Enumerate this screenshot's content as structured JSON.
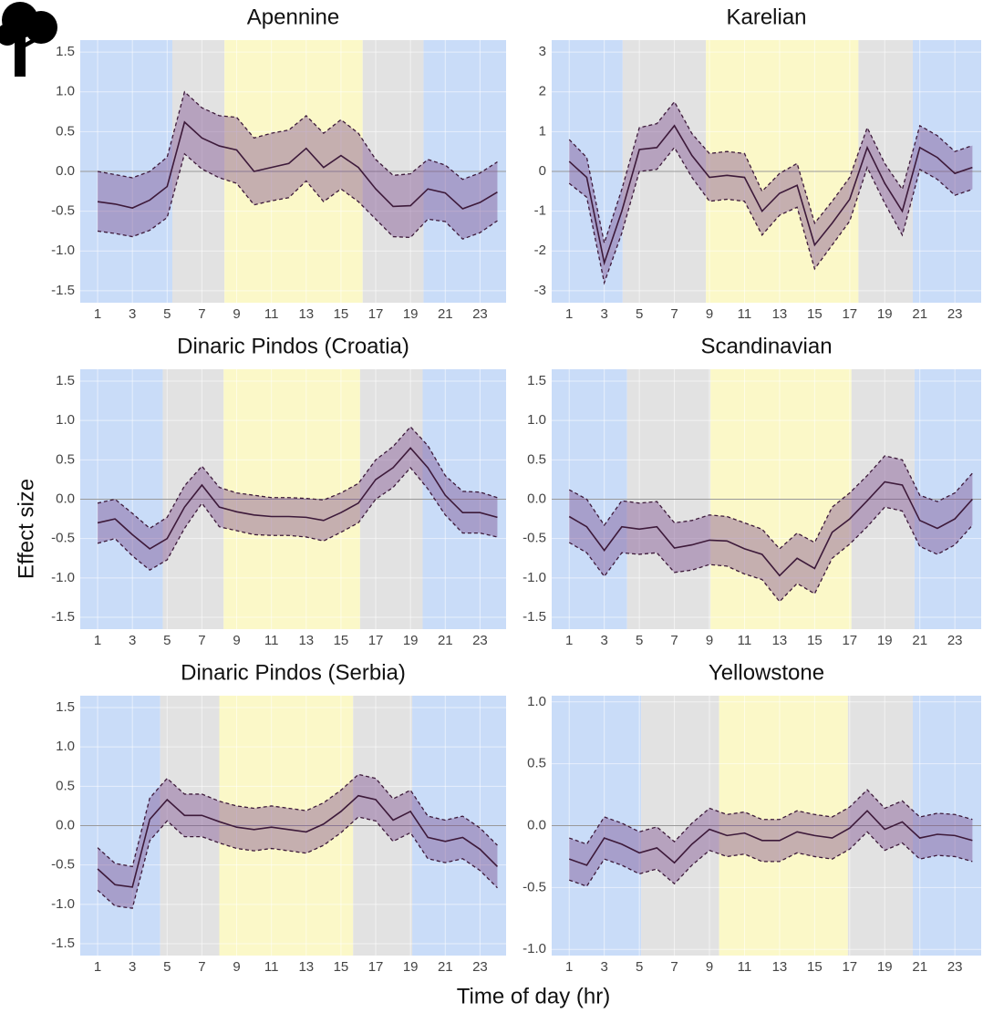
{
  "axis_labels": {
    "x": "Time of day (hr)",
    "y": "Effect size"
  },
  "chart_data": [
    {
      "type": "line",
      "title": "Apennine",
      "x": [
        1,
        2,
        3,
        4,
        5,
        6,
        7,
        8,
        9,
        10,
        11,
        12,
        13,
        14,
        15,
        16,
        17,
        18,
        19,
        20,
        21,
        22,
        23,
        24
      ],
      "values": [
        -0.38,
        -0.41,
        -0.46,
        -0.36,
        -0.19,
        0.62,
        0.42,
        0.32,
        0.27,
        0.0,
        0.05,
        0.1,
        0.29,
        0.05,
        0.2,
        0.05,
        -0.22,
        -0.44,
        -0.43,
        -0.22,
        -0.27,
        -0.47,
        -0.39,
        -0.26
      ],
      "upper": [
        0.0,
        -0.04,
        -0.08,
        0.0,
        0.18,
        1.0,
        0.8,
        0.7,
        0.68,
        0.42,
        0.48,
        0.52,
        0.7,
        0.48,
        0.65,
        0.48,
        0.15,
        -0.05,
        -0.03,
        0.15,
        0.08,
        -0.1,
        -0.02,
        0.12
      ],
      "lower": [
        -0.75,
        -0.78,
        -0.82,
        -0.74,
        -0.58,
        0.22,
        0.03,
        -0.08,
        -0.15,
        -0.42,
        -0.37,
        -0.33,
        -0.12,
        -0.38,
        -0.22,
        -0.38,
        -0.6,
        -0.82,
        -0.83,
        -0.6,
        -0.63,
        -0.85,
        -0.77,
        -0.62
      ],
      "regions": [
        {
          "from": 0,
          "to": 5.3,
          "color": "#c9dcf8"
        },
        {
          "from": 5.3,
          "to": 8.3,
          "color": "#e2e2e2"
        },
        {
          "from": 8.3,
          "to": 16.25,
          "color": "#fbf8c8"
        },
        {
          "from": 16.25,
          "to": 19.75,
          "color": "#e2e2e2"
        },
        {
          "from": 19.75,
          "to": 24.5,
          "color": "#c9dcf8"
        }
      ],
      "xlim": [
        0,
        24.5
      ],
      "xticks": [
        1,
        3,
        5,
        7,
        9,
        11,
        13,
        15,
        17,
        19,
        21,
        23
      ],
      "ylim": [
        -1.65,
        1.65
      ],
      "yticks": [
        -1.5,
        {
          "value": -1,
          "label": "-1.0"
        },
        -0.5,
        {
          "value": 0,
          "label": "0.0"
        },
        0.5,
        {
          "value": 1,
          "label": "1.0"
        },
        1.5
      ],
      "grid": true,
      "refline": 0,
      "line_color": "#3d1a3a",
      "band_color": "#7a4a8c"
    },
    {
      "type": "line",
      "title": "Karelian",
      "x": [
        1,
        2,
        3,
        4,
        5,
        6,
        7,
        8,
        9,
        10,
        11,
        12,
        13,
        14,
        15,
        16,
        17,
        18,
        19,
        20,
        21,
        22,
        23,
        24
      ],
      "values": [
        0.25,
        -0.15,
        -2.3,
        -1.0,
        0.55,
        0.6,
        1.15,
        0.4,
        -0.15,
        -0.1,
        -0.15,
        -1.0,
        -0.55,
        -0.35,
        -1.85,
        -1.3,
        -0.7,
        0.6,
        -0.3,
        -1.0,
        0.6,
        0.35,
        -0.05,
        0.1
      ],
      "upper": [
        0.8,
        0.35,
        -1.8,
        -0.45,
        1.1,
        1.2,
        1.75,
        0.95,
        0.45,
        0.5,
        0.45,
        -0.5,
        -0.05,
        0.2,
        -1.3,
        -0.75,
        -0.15,
        1.1,
        0.2,
        -0.45,
        1.15,
        0.9,
        0.5,
        0.65
      ],
      "lower": [
        -0.3,
        -0.65,
        -2.8,
        -1.55,
        0.0,
        0.05,
        0.6,
        -0.15,
        -0.75,
        -0.7,
        -0.75,
        -1.6,
        -1.1,
        -0.9,
        -2.45,
        -1.85,
        -1.25,
        0.1,
        -0.8,
        -1.6,
        0.05,
        -0.2,
        -0.6,
        -0.45
      ],
      "regions": [
        {
          "from": 0,
          "to": 4.05,
          "color": "#c9dcf8"
        },
        {
          "from": 4.05,
          "to": 8.8,
          "color": "#e2e2e2"
        },
        {
          "from": 8.8,
          "to": 17.5,
          "color": "#fbf8c8"
        },
        {
          "from": 17.5,
          "to": 20.6,
          "color": "#e2e2e2"
        },
        {
          "from": 20.6,
          "to": 24.5,
          "color": "#c9dcf8"
        }
      ],
      "xlim": [
        0,
        24.5
      ],
      "xticks": [
        1,
        3,
        5,
        7,
        9,
        11,
        13,
        15,
        17,
        19,
        21,
        23
      ],
      "ylim": [
        -3.3,
        3.3
      ],
      "yticks": [
        -3,
        -2,
        -1,
        0,
        1,
        2,
        3
      ],
      "grid": true,
      "refline": 0,
      "line_color": "#3d1a3a",
      "band_color": "#7a4a8c"
    },
    {
      "type": "line",
      "title": "Dinaric Pindos (Croatia)",
      "x": [
        1,
        2,
        3,
        4,
        5,
        6,
        7,
        8,
        9,
        10,
        11,
        12,
        13,
        14,
        15,
        16,
        17,
        18,
        19,
        20,
        21,
        22,
        23,
        24
      ],
      "values": [
        -0.3,
        -0.25,
        -0.45,
        -0.63,
        -0.5,
        -0.1,
        0.18,
        -0.1,
        -0.16,
        -0.2,
        -0.22,
        -0.22,
        -0.23,
        -0.27,
        -0.17,
        -0.05,
        0.25,
        0.4,
        0.65,
        0.4,
        0.05,
        -0.17,
        -0.17,
        -0.23
      ],
      "upper": [
        -0.05,
        0.0,
        -0.18,
        -0.37,
        -0.23,
        0.17,
        0.42,
        0.15,
        0.08,
        0.05,
        0.02,
        0.02,
        0.01,
        -0.01,
        0.08,
        0.2,
        0.5,
        0.67,
        0.92,
        0.68,
        0.3,
        0.1,
        0.09,
        0.02
      ],
      "lower": [
        -0.56,
        -0.5,
        -0.72,
        -0.9,
        -0.77,
        -0.37,
        -0.05,
        -0.35,
        -0.4,
        -0.45,
        -0.46,
        -0.46,
        -0.48,
        -0.53,
        -0.42,
        -0.3,
        0.0,
        0.15,
        0.4,
        0.13,
        -0.2,
        -0.43,
        -0.43,
        -0.48
      ],
      "regions": [
        {
          "from": 0,
          "to": 4.75,
          "color": "#c9dcf8"
        },
        {
          "from": 4.75,
          "to": 8.25,
          "color": "#e2e2e2"
        },
        {
          "from": 8.25,
          "to": 16.1,
          "color": "#fbf8c8"
        },
        {
          "from": 16.1,
          "to": 19.7,
          "color": "#e2e2e2"
        },
        {
          "from": 19.7,
          "to": 24.5,
          "color": "#c9dcf8"
        }
      ],
      "xlim": [
        0,
        24.5
      ],
      "xticks": [
        1,
        3,
        5,
        7,
        9,
        11,
        13,
        15,
        17,
        19,
        21,
        23
      ],
      "ylim": [
        -1.65,
        1.65
      ],
      "yticks": [
        -1.5,
        {
          "value": -1,
          "label": "-1.0"
        },
        -0.5,
        {
          "value": 0,
          "label": "0.0"
        },
        0.5,
        {
          "value": 1,
          "label": "1.0"
        },
        1.5
      ],
      "grid": true,
      "refline": 0,
      "line_color": "#3d1a3a",
      "band_color": "#7a4a8c"
    },
    {
      "type": "line",
      "title": "Scandinavian",
      "x": [
        1,
        2,
        3,
        4,
        5,
        6,
        7,
        8,
        9,
        10,
        11,
        12,
        13,
        14,
        15,
        16,
        17,
        18,
        19,
        20,
        21,
        22,
        23,
        24
      ],
      "values": [
        -0.22,
        -0.35,
        -0.65,
        -0.35,
        -0.38,
        -0.35,
        -0.62,
        -0.58,
        -0.52,
        -0.53,
        -0.63,
        -0.7,
        -0.97,
        -0.75,
        -0.88,
        -0.42,
        -0.25,
        -0.02,
        0.22,
        0.18,
        -0.27,
        -0.37,
        -0.25,
        0.0
      ],
      "upper": [
        0.12,
        0.0,
        -0.33,
        -0.02,
        -0.05,
        -0.03,
        -0.3,
        -0.27,
        -0.2,
        -0.22,
        -0.3,
        -0.38,
        -0.63,
        -0.43,
        -0.55,
        -0.1,
        0.08,
        0.3,
        0.55,
        0.5,
        0.05,
        -0.03,
        0.08,
        0.33
      ],
      "lower": [
        -0.55,
        -0.68,
        -0.98,
        -0.68,
        -0.7,
        -0.68,
        -0.93,
        -0.9,
        -0.83,
        -0.85,
        -0.95,
        -1.02,
        -1.3,
        -1.07,
        -1.2,
        -0.75,
        -0.57,
        -0.35,
        -0.1,
        -0.15,
        -0.6,
        -0.7,
        -0.58,
        -0.33
      ],
      "regions": [
        {
          "from": 0,
          "to": 4.3,
          "color": "#c9dcf8"
        },
        {
          "from": 4.3,
          "to": 9.06,
          "color": "#e2e2e2"
        },
        {
          "from": 9.06,
          "to": 17.1,
          "color": "#fbf8c8"
        },
        {
          "from": 17.1,
          "to": 20.7,
          "color": "#e2e2e2"
        },
        {
          "from": 20.7,
          "to": 24.5,
          "color": "#c9dcf8"
        }
      ],
      "xlim": [
        0,
        24.5
      ],
      "xticks": [
        1,
        3,
        5,
        7,
        9,
        11,
        13,
        15,
        17,
        19,
        21,
        23
      ],
      "ylim": [
        -1.65,
        1.65
      ],
      "yticks": [
        -1.5,
        {
          "value": -1,
          "label": "-1.0"
        },
        -0.5,
        {
          "value": 0,
          "label": "0.0"
        },
        0.5,
        {
          "value": 1,
          "label": "1.0"
        },
        1.5
      ],
      "grid": true,
      "refline": 0,
      "line_color": "#3d1a3a",
      "band_color": "#7a4a8c"
    },
    {
      "type": "line",
      "title": "Dinaric Pindos (Serbia)",
      "x": [
        1,
        2,
        3,
        4,
        5,
        6,
        7,
        8,
        9,
        10,
        11,
        12,
        13,
        14,
        15,
        16,
        17,
        18,
        19,
        20,
        21,
        22,
        23,
        24
      ],
      "values": [
        -0.55,
        -0.75,
        -0.78,
        0.08,
        0.33,
        0.13,
        0.13,
        0.05,
        -0.02,
        -0.05,
        -0.02,
        -0.05,
        -0.08,
        0.02,
        0.18,
        0.38,
        0.33,
        0.07,
        0.18,
        -0.15,
        -0.2,
        -0.15,
        -0.3,
        -0.52
      ],
      "upper": [
        -0.28,
        -0.48,
        -0.52,
        0.35,
        0.6,
        0.4,
        0.4,
        0.31,
        0.25,
        0.22,
        0.25,
        0.22,
        0.19,
        0.29,
        0.45,
        0.65,
        0.6,
        0.34,
        0.45,
        0.12,
        0.07,
        0.12,
        -0.03,
        -0.25
      ],
      "lower": [
        -0.82,
        -1.02,
        -1.05,
        -0.19,
        0.06,
        -0.14,
        -0.14,
        -0.22,
        -0.29,
        -0.32,
        -0.29,
        -0.32,
        -0.35,
        -0.25,
        -0.09,
        0.11,
        0.06,
        -0.2,
        -0.09,
        -0.42,
        -0.47,
        -0.42,
        -0.57,
        -0.79
      ],
      "regions": [
        {
          "from": 0,
          "to": 4.6,
          "color": "#c9dcf8"
        },
        {
          "from": 4.6,
          "to": 8.0,
          "color": "#e2e2e2"
        },
        {
          "from": 8.0,
          "to": 15.7,
          "color": "#fbf8c8"
        },
        {
          "from": 15.7,
          "to": 19.1,
          "color": "#e2e2e2"
        },
        {
          "from": 19.1,
          "to": 24.5,
          "color": "#c9dcf8"
        }
      ],
      "xlim": [
        0,
        24.5
      ],
      "xticks": [
        1,
        3,
        5,
        7,
        9,
        11,
        13,
        15,
        17,
        19,
        21,
        23
      ],
      "ylim": [
        -1.65,
        1.65
      ],
      "yticks": [
        -1.5,
        {
          "value": -1,
          "label": "-1.0"
        },
        -0.5,
        {
          "value": 0,
          "label": "0.0"
        },
        0.5,
        {
          "value": 1,
          "label": "1.0"
        },
        1.5
      ],
      "grid": true,
      "refline": 0,
      "line_color": "#3d1a3a",
      "band_color": "#7a4a8c"
    },
    {
      "type": "line",
      "title": "Yellowstone",
      "x": [
        1,
        2,
        3,
        4,
        5,
        6,
        7,
        8,
        9,
        10,
        11,
        12,
        13,
        14,
        15,
        16,
        17,
        18,
        19,
        20,
        21,
        22,
        23,
        24
      ],
      "values": [
        -0.27,
        -0.32,
        -0.1,
        -0.15,
        -0.22,
        -0.18,
        -0.3,
        -0.15,
        -0.03,
        -0.08,
        -0.06,
        -0.12,
        -0.12,
        -0.05,
        -0.08,
        -0.1,
        -0.02,
        0.12,
        -0.03,
        0.03,
        -0.1,
        -0.07,
        -0.08,
        -0.12
      ],
      "upper": [
        -0.1,
        -0.15,
        0.07,
        0.02,
        -0.05,
        -0.01,
        -0.13,
        0.02,
        0.14,
        0.09,
        0.11,
        0.05,
        0.05,
        0.12,
        0.09,
        0.07,
        0.15,
        0.29,
        0.14,
        0.2,
        0.07,
        0.1,
        0.09,
        0.05
      ],
      "lower": [
        -0.44,
        -0.49,
        -0.27,
        -0.32,
        -0.39,
        -0.35,
        -0.47,
        -0.32,
        -0.2,
        -0.25,
        -0.23,
        -0.29,
        -0.29,
        -0.22,
        -0.25,
        -0.27,
        -0.19,
        -0.05,
        -0.2,
        -0.14,
        -0.27,
        -0.24,
        -0.25,
        -0.29
      ],
      "regions": [
        {
          "from": 0,
          "to": 5.1,
          "color": "#c9dcf8"
        },
        {
          "from": 5.1,
          "to": 9.55,
          "color": "#e2e2e2"
        },
        {
          "from": 9.55,
          "to": 16.9,
          "color": "#fbf8c8"
        },
        {
          "from": 16.9,
          "to": 20.6,
          "color": "#e2e2e2"
        },
        {
          "from": 20.6,
          "to": 24.5,
          "color": "#c9dcf8"
        }
      ],
      "xlim": [
        0,
        24.5
      ],
      "xticks": [
        1,
        3,
        5,
        7,
        9,
        11,
        13,
        15,
        17,
        19,
        21,
        23
      ],
      "ylim": [
        -1.05,
        1.05
      ],
      "yticks": [
        {
          "value": -1,
          "label": "-1.0"
        },
        -0.5,
        {
          "value": 0,
          "label": "0.0"
        },
        0.5,
        {
          "value": 1,
          "label": "1.0"
        }
      ],
      "grid": true,
      "refline": 0,
      "line_color": "#3d1a3a",
      "band_color": "#7a4a8c"
    }
  ]
}
